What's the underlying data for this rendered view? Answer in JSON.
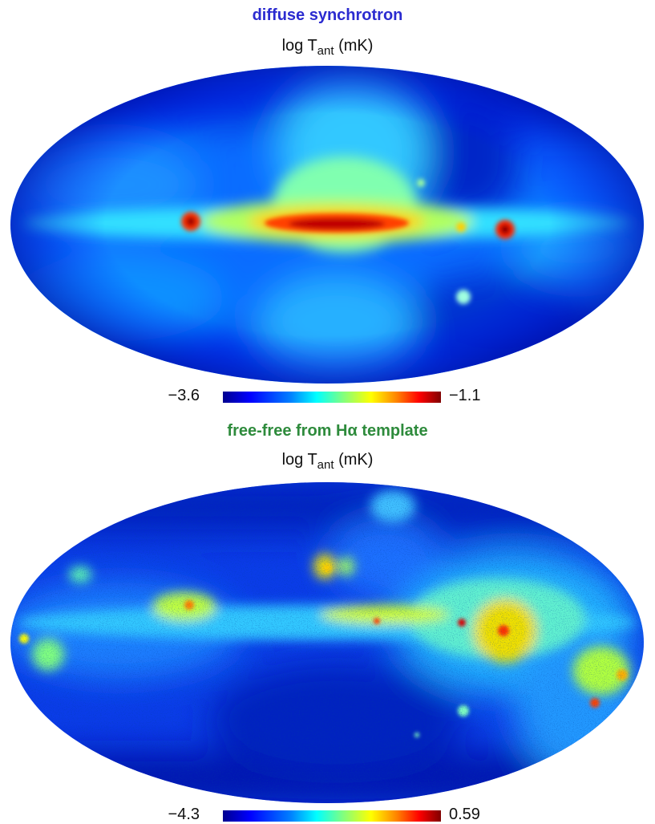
{
  "maps": [
    {
      "title_text": "diffuse synchrotron",
      "title_color": "#2b2bd0",
      "quantity_prefix": "log T",
      "quantity_subscript": "ant",
      "quantity_unit": " (mK)",
      "colorbar": {
        "min_label": "−3.6",
        "max_label": "−1.1",
        "min": -3.6,
        "max": -1.1
      }
    },
    {
      "title_text_before": "free-free from H",
      "title_subscript": "α",
      "title_text_after": " template",
      "title_color": "#2e8b3c",
      "quantity_prefix": "log T",
      "quantity_subscript": "ant",
      "quantity_unit": " (mK)",
      "colorbar": {
        "min_label": "−4.3",
        "max_label": "0.59",
        "min": -4.3,
        "max": 0.59
      }
    }
  ],
  "colormap": "jet",
  "projection": "Mollweide"
}
